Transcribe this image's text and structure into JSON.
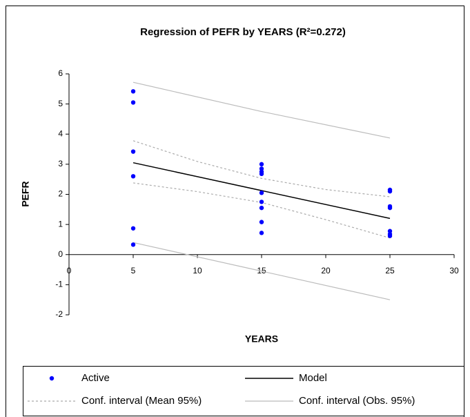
{
  "chart_data": {
    "type": "scatter",
    "title": "Regression of PEFR by YEARS (R²=0.272)",
    "x_label": "YEARS",
    "y_label": "PEFR",
    "xlim": [
      0,
      30
    ],
    "ylim": [
      -2,
      6
    ],
    "xticks": [
      0,
      5,
      10,
      15,
      20,
      25,
      30
    ],
    "yticks": [
      -2,
      -1,
      0,
      1,
      2,
      3,
      4,
      5,
      6
    ],
    "series": [
      {
        "name": "Active",
        "kind": "points",
        "color": "#0000ff",
        "x": [
          5,
          5,
          5,
          5,
          5,
          5,
          15,
          15,
          15,
          15,
          15,
          15,
          15,
          15,
          15,
          25,
          25,
          25,
          25,
          25,
          25,
          25
        ],
        "values": [
          5.42,
          5.05,
          3.42,
          2.6,
          0.87,
          0.33,
          3.0,
          2.85,
          2.75,
          2.68,
          2.05,
          1.75,
          1.55,
          1.08,
          0.72,
          2.15,
          2.1,
          1.6,
          1.55,
          0.78,
          0.68,
          0.62
        ]
      },
      {
        "name": "Model",
        "kind": "line",
        "color": "#000000",
        "x": [
          5,
          25
        ],
        "values": [
          3.05,
          1.2
        ]
      },
      {
        "name": "Conf. interval (Mean 95%)",
        "kind": "band",
        "color": "#aaaaaa",
        "dash": true,
        "x": [
          5,
          10,
          15,
          20,
          25
        ],
        "upper": [
          3.78,
          3.09,
          2.53,
          2.16,
          1.92
        ],
        "lower": [
          2.38,
          2.09,
          1.73,
          1.16,
          0.55
        ]
      },
      {
        "name": "Conf. interval (Obs. 95%)",
        "kind": "band",
        "color": "#bbbbbb",
        "dash": false,
        "x": [
          5,
          15,
          25
        ],
        "upper": [
          5.72,
          4.75,
          3.87
        ],
        "lower": [
          0.4,
          -0.55,
          -1.5
        ]
      }
    ]
  }
}
